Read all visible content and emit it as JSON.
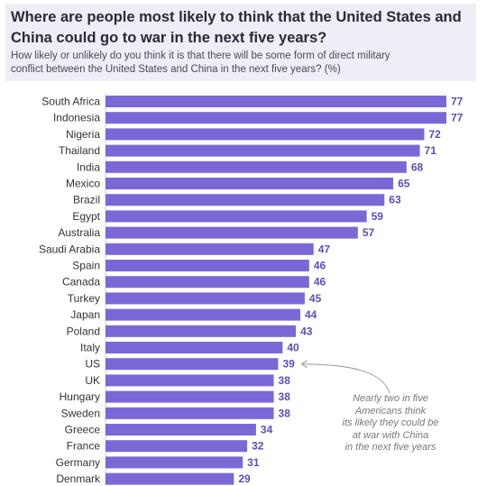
{
  "header": {
    "title_line1": "Where are people most likely to think that the United States and",
    "title_line2": "China could go to war in the next five years?",
    "subtitle_line1": "How likely or unlikely do you think it is that there will be some form of direct military",
    "subtitle_line2": "conflict between the United States and China in the next five years? (%)"
  },
  "annotation": {
    "lines": [
      "Nearly two in five",
      "Americans think",
      "its likely they could be",
      "at war with China",
      "in the next five years"
    ]
  },
  "colors": {
    "bar": "#7b68d6",
    "value_label": "#5a4fb3",
    "header_bg": "#eeeef6"
  },
  "chart_data": {
    "type": "bar",
    "orientation": "horizontal",
    "title": "Where are people most likely to think that the United States and China could go to war in the next five years?",
    "subtitle": "How likely or unlikely do you think it is that there will be some form of direct military conflict between the United States and China in the next five years? (%)",
    "categories": [
      "South Africa",
      "Indonesia",
      "Nigeria",
      "Thailand",
      "India",
      "Mexico",
      "Brazil",
      "Egypt",
      "Australia",
      "Saudi Arabia",
      "Spain",
      "Canada",
      "Turkey",
      "Japan",
      "Poland",
      "Italy",
      "US",
      "UK",
      "Hungary",
      "Sweden",
      "Greece",
      "France",
      "Germany",
      "Denmark"
    ],
    "values": [
      77,
      77,
      72,
      71,
      68,
      65,
      63,
      59,
      57,
      47,
      46,
      46,
      45,
      44,
      43,
      40,
      39,
      38,
      38,
      38,
      34,
      32,
      31,
      29
    ],
    "xlim": [
      0,
      77
    ],
    "grid": false,
    "legend": "none"
  }
}
